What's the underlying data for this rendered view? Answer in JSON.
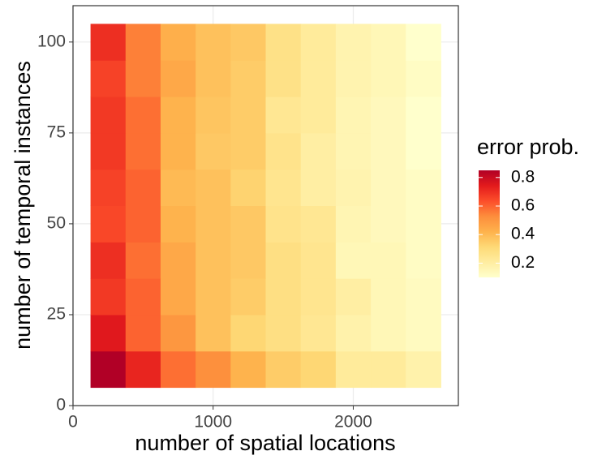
{
  "chart_data": {
    "type": "heatmap",
    "x_label": "number of spatial locations",
    "y_label": "number of temporal instances",
    "legend_title": "error prob.",
    "x": [
      250,
      500,
      750,
      1000,
      1250,
      1500,
      1750,
      2000,
      2250,
      2500
    ],
    "y": [
      10,
      20,
      30,
      40,
      50,
      60,
      70,
      80,
      90,
      100
    ],
    "z": [
      [
        0.85,
        0.72,
        0.58,
        0.52,
        0.42,
        0.35,
        0.32,
        0.22,
        0.22,
        0.18
      ],
      [
        0.75,
        0.6,
        0.5,
        0.38,
        0.32,
        0.28,
        0.24,
        0.18,
        0.15,
        0.13
      ],
      [
        0.68,
        0.6,
        0.45,
        0.38,
        0.35,
        0.28,
        0.25,
        0.2,
        0.15,
        0.13
      ],
      [
        0.7,
        0.58,
        0.45,
        0.38,
        0.36,
        0.28,
        0.25,
        0.15,
        0.15,
        0.12
      ],
      [
        0.65,
        0.6,
        0.42,
        0.38,
        0.36,
        0.26,
        0.24,
        0.16,
        0.14,
        0.12
      ],
      [
        0.66,
        0.6,
        0.4,
        0.38,
        0.33,
        0.25,
        0.2,
        0.17,
        0.14,
        0.12
      ],
      [
        0.68,
        0.58,
        0.42,
        0.36,
        0.35,
        0.26,
        0.2,
        0.16,
        0.14,
        0.1
      ],
      [
        0.68,
        0.58,
        0.42,
        0.37,
        0.35,
        0.24,
        0.22,
        0.16,
        0.14,
        0.1
      ],
      [
        0.66,
        0.55,
        0.45,
        0.38,
        0.35,
        0.27,
        0.22,
        0.17,
        0.15,
        0.12
      ],
      [
        0.7,
        0.55,
        0.43,
        0.38,
        0.36,
        0.27,
        0.22,
        0.17,
        0.15,
        0.1
      ]
    ],
    "xlim": [
      0,
      2750
    ],
    "ylim": [
      0,
      110
    ],
    "xticks": [
      0,
      1000,
      2000
    ],
    "yticks": [
      0,
      25,
      50,
      75,
      100
    ],
    "colorbar_ticks": [
      0.2,
      0.4,
      0.6,
      0.8
    ],
    "colorscale": [
      "#FFFFCC",
      "#FFEDA0",
      "#FED976",
      "#FEB24C",
      "#FD8D3C",
      "#FC4E2A",
      "#E31A1C",
      "#B10026"
    ],
    "grid": true
  }
}
